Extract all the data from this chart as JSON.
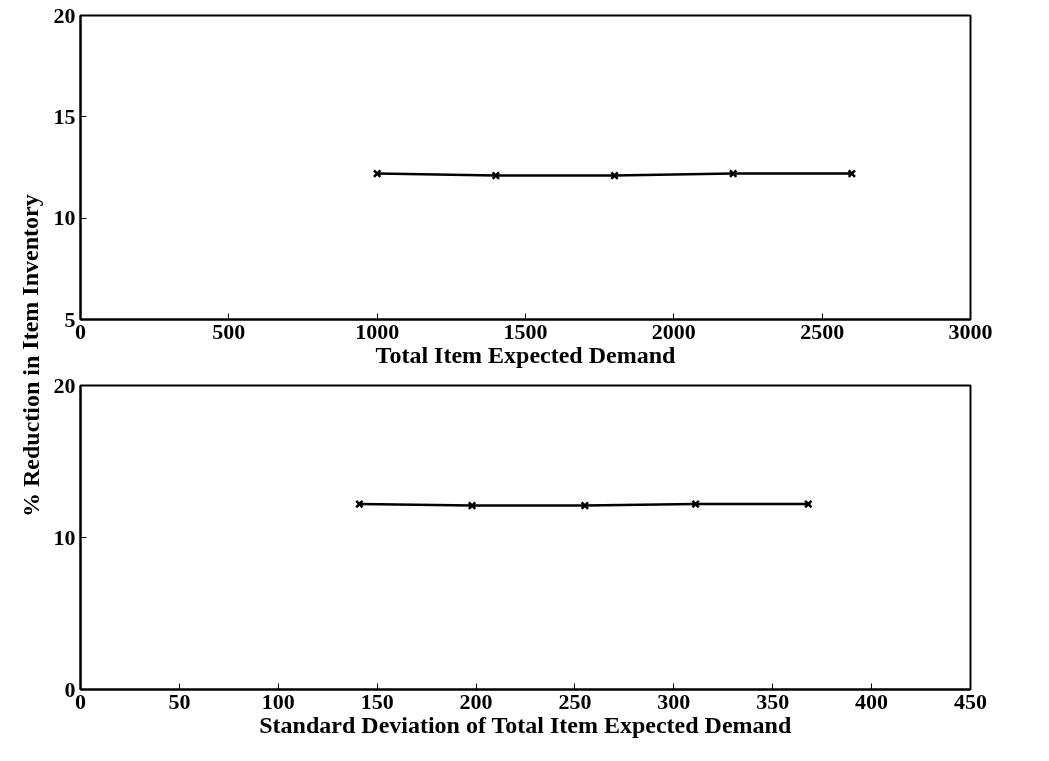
{
  "chart_data": [
    {
      "type": "line",
      "xlabel": "Total Item Expected Demand",
      "ylabel": "% Reduction in Item Inventory",
      "x": [
        1000,
        1400,
        1800,
        2200,
        2600
      ],
      "series": [
        {
          "color": "#000000",
          "values": [
            12.2,
            12.1,
            12.1,
            12.2,
            12.2
          ]
        }
      ],
      "xlim": [
        0,
        3000
      ],
      "xticks": [
        0,
        500,
        1000,
        1500,
        2000,
        2500,
        3000
      ],
      "ylim": [
        5,
        20
      ],
      "yticks": [
        5,
        10,
        15,
        20
      ],
      "grid": false,
      "marker": "cross",
      "line_style": "solid"
    },
    {
      "type": "line",
      "xlabel": "Standard Deviation of Total Item Expected Demand",
      "x": [
        141,
        198,
        255,
        311,
        368
      ],
      "series": [
        {
          "color": "#000000",
          "values": [
            12.2,
            12.1,
            12.1,
            12.2,
            12.2
          ]
        }
      ],
      "xlim": [
        0,
        450
      ],
      "xticks": [
        0,
        50,
        100,
        150,
        200,
        250,
        300,
        350,
        400,
        450
      ],
      "ylim": [
        0,
        20
      ],
      "yticks": [
        0,
        10,
        20
      ],
      "grid": false,
      "marker": "cross",
      "line_style": "solid"
    }
  ]
}
